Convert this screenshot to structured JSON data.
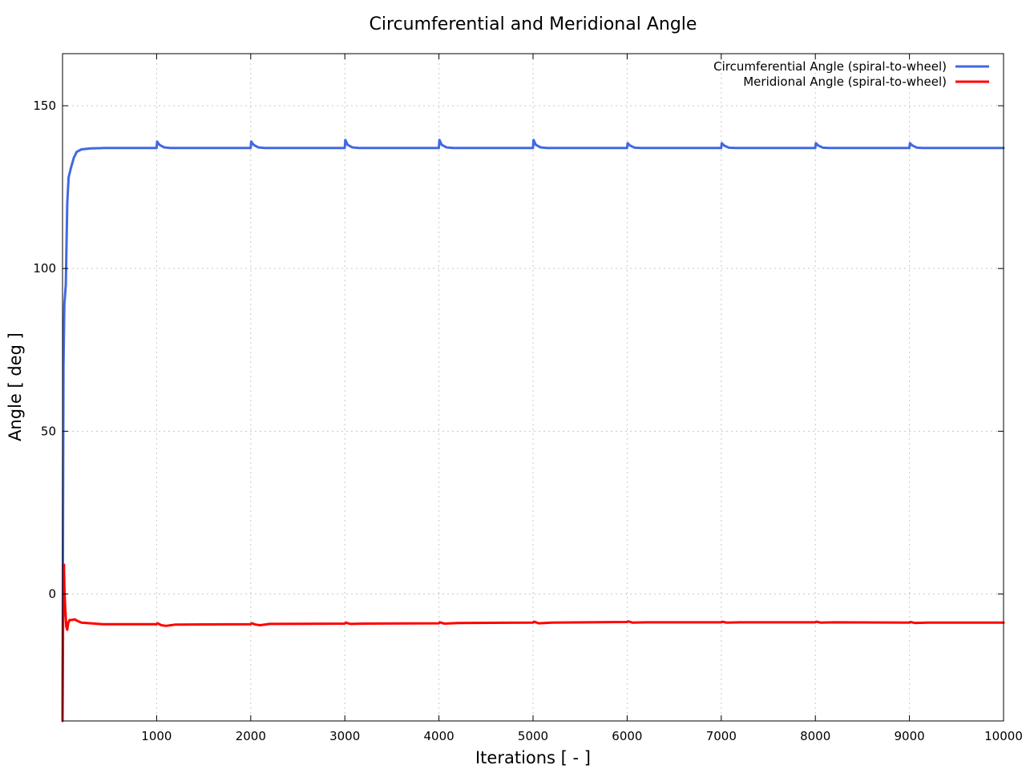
{
  "chart_data": {
    "type": "line",
    "title": "Circumferential and Meridional Angle",
    "xlabel": "Iterations [ - ]",
    "ylabel": "Angle [ deg ]",
    "xlim": [
      0,
      10000
    ],
    "ylim": [
      -39,
      166
    ],
    "grid": true,
    "legend_position": "top-right",
    "x_ticks": [
      1000,
      2000,
      3000,
      4000,
      5000,
      6000,
      7000,
      8000,
      9000,
      10000
    ],
    "y_ticks": [
      0,
      50,
      100,
      150
    ],
    "series": [
      {
        "name": "Circumferential Angle (spiral-to-wheel)",
        "color": "#4169e1",
        "points": [
          [
            0,
            -39
          ],
          [
            5,
            20
          ],
          [
            10,
            70
          ],
          [
            20,
            89
          ],
          [
            35,
            95
          ],
          [
            50,
            120
          ],
          [
            65,
            128
          ],
          [
            90,
            131
          ],
          [
            120,
            134
          ],
          [
            150,
            135.8
          ],
          [
            200,
            136.6
          ],
          [
            300,
            136.9
          ],
          [
            430,
            137.0
          ],
          [
            999,
            137.0
          ],
          [
            1005,
            139.0
          ],
          [
            1030,
            138.0
          ],
          [
            1080,
            137.2
          ],
          [
            1150,
            137.0
          ],
          [
            1999,
            137.0
          ],
          [
            2005,
            139.0
          ],
          [
            2030,
            138.0
          ],
          [
            2080,
            137.2
          ],
          [
            2150,
            137.0
          ],
          [
            2999,
            137.0
          ],
          [
            3005,
            139.5
          ],
          [
            3030,
            138.0
          ],
          [
            3080,
            137.2
          ],
          [
            3150,
            137.0
          ],
          [
            3999,
            137.0
          ],
          [
            4005,
            139.5
          ],
          [
            4030,
            138.0
          ],
          [
            4080,
            137.2
          ],
          [
            4150,
            137.0
          ],
          [
            4999,
            137.0
          ],
          [
            5005,
            139.5
          ],
          [
            5030,
            138.0
          ],
          [
            5080,
            137.2
          ],
          [
            5150,
            137.0
          ],
          [
            5999,
            137.0
          ],
          [
            6005,
            138.5
          ],
          [
            6030,
            137.8
          ],
          [
            6080,
            137.1
          ],
          [
            6150,
            137.0
          ],
          [
            6999,
            137.0
          ],
          [
            7005,
            138.5
          ],
          [
            7030,
            137.8
          ],
          [
            7080,
            137.1
          ],
          [
            7150,
            137.0
          ],
          [
            7999,
            137.0
          ],
          [
            8005,
            138.5
          ],
          [
            8030,
            137.8
          ],
          [
            8080,
            137.1
          ],
          [
            8150,
            137.0
          ],
          [
            8999,
            137.0
          ],
          [
            9005,
            138.5
          ],
          [
            9030,
            137.8
          ],
          [
            9080,
            137.1
          ],
          [
            9150,
            137.0
          ],
          [
            10000,
            137.0
          ]
        ]
      },
      {
        "name": "Meridional Angle (spiral-to-wheel)",
        "color": "#ff0000",
        "points": [
          [
            0,
            -39
          ],
          [
            5,
            -12
          ],
          [
            10,
            4
          ],
          [
            15,
            9
          ],
          [
            20,
            2
          ],
          [
            30,
            -5
          ],
          [
            40,
            -10
          ],
          [
            50,
            -11
          ],
          [
            60,
            -9
          ],
          [
            75,
            -8
          ],
          [
            100,
            -8
          ],
          [
            130,
            -7.8
          ],
          [
            160,
            -8.3
          ],
          [
            200,
            -8.8
          ],
          [
            300,
            -9
          ],
          [
            430,
            -9.3
          ],
          [
            999,
            -9.3
          ],
          [
            1010,
            -9.0
          ],
          [
            1050,
            -9.6
          ],
          [
            1100,
            -9.8
          ],
          [
            1200,
            -9.4
          ],
          [
            1999,
            -9.3
          ],
          [
            2010,
            -9.0
          ],
          [
            2050,
            -9.4
          ],
          [
            2100,
            -9.6
          ],
          [
            2200,
            -9.2
          ],
          [
            2999,
            -9.1
          ],
          [
            3010,
            -8.8
          ],
          [
            3060,
            -9.2
          ],
          [
            3200,
            -9.1
          ],
          [
            3999,
            -9.0
          ],
          [
            4010,
            -8.7
          ],
          [
            4060,
            -9.1
          ],
          [
            4200,
            -8.9
          ],
          [
            4999,
            -8.8
          ],
          [
            5010,
            -8.5
          ],
          [
            5060,
            -9.0
          ],
          [
            5200,
            -8.8
          ],
          [
            5999,
            -8.6
          ],
          [
            6010,
            -8.4
          ],
          [
            6060,
            -8.8
          ],
          [
            6200,
            -8.7
          ],
          [
            6999,
            -8.7
          ],
          [
            7010,
            -8.5
          ],
          [
            7060,
            -8.8
          ],
          [
            7200,
            -8.7
          ],
          [
            7999,
            -8.7
          ],
          [
            8010,
            -8.5
          ],
          [
            8060,
            -8.8
          ],
          [
            8200,
            -8.7
          ],
          [
            8999,
            -8.8
          ],
          [
            9010,
            -8.6
          ],
          [
            9060,
            -8.9
          ],
          [
            9200,
            -8.8
          ],
          [
            10000,
            -8.8
          ]
        ]
      }
    ]
  }
}
